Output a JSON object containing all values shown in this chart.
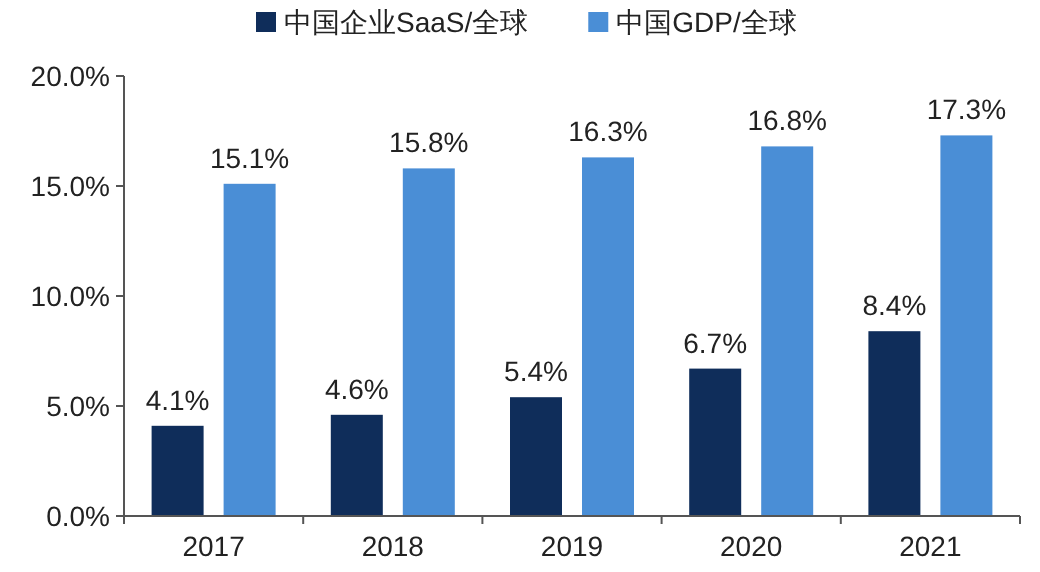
{
  "chart_data": {
    "type": "bar",
    "categories": [
      "2017",
      "2018",
      "2019",
      "2020",
      "2021"
    ],
    "series": [
      {
        "name": "中国企业SaaS/全球",
        "color": "#0f2d5a",
        "values": [
          4.1,
          4.6,
          5.4,
          6.7,
          8.4
        ],
        "value_labels": [
          "4.1%",
          "4.6%",
          "5.4%",
          "6.7%",
          "8.4%"
        ]
      },
      {
        "name": "中国GDP/全球",
        "color": "#4a8ed6",
        "values": [
          15.1,
          15.8,
          16.3,
          16.8,
          17.3
        ],
        "value_labels": [
          "15.1%",
          "15.8%",
          "16.3%",
          "16.8%",
          "17.3%"
        ]
      }
    ],
    "ylim": [
      0,
      20
    ],
    "yticks": [
      {
        "value": 0,
        "label": "0.0%"
      },
      {
        "value": 5,
        "label": "5.0%"
      },
      {
        "value": 10,
        "label": "10.0%"
      },
      {
        "value": 15,
        "label": "15.0%"
      },
      {
        "value": 20,
        "label": "20.0%"
      }
    ],
    "legend": "top",
    "grid": false
  }
}
